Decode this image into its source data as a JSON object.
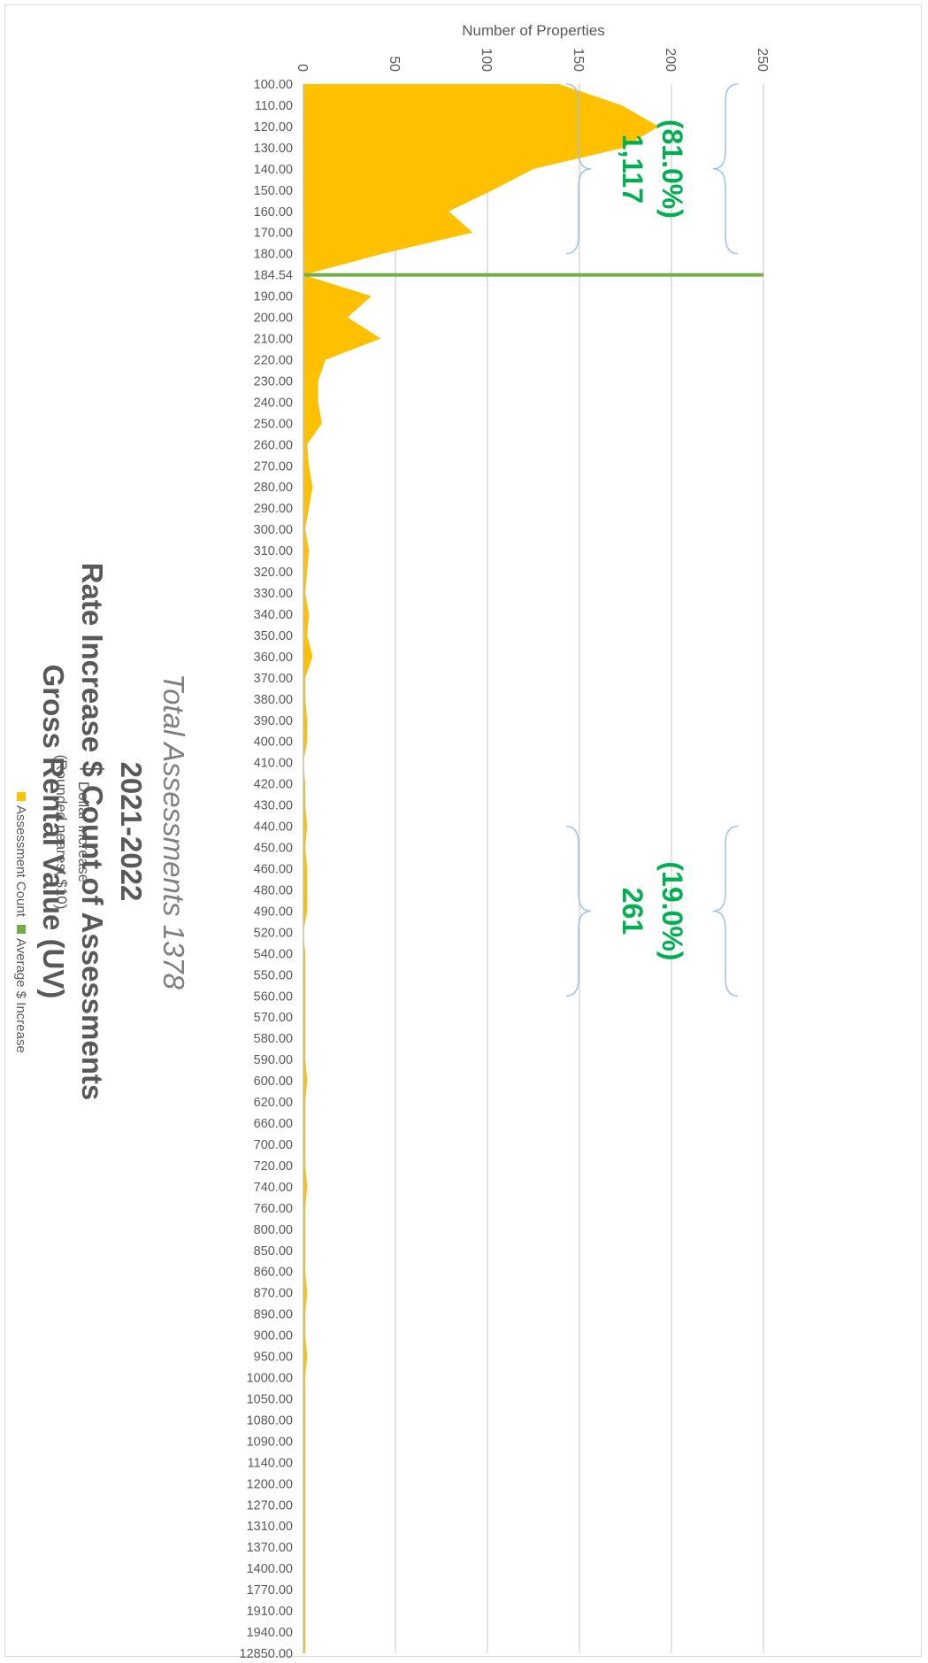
{
  "chart_data": {
    "type": "area",
    "orientation": "rotated-180",
    "title": "Gross Rental Value (UV)",
    "title_line2": "Rate Increase $ Count of Assessments",
    "title_line3": "2021-2022",
    "subtitle": "Total Assessments 1378",
    "xlabel": "Dollar Increase",
    "xlabel_line2": "(Rounded nearest $10)",
    "ylabel": "Number of Properties",
    "ylim": [
      0,
      250
    ],
    "yticks": [
      "0",
      "50",
      "100",
      "150",
      "200",
      "250"
    ],
    "grid": true,
    "legend_position": "bottom",
    "categories": [
      "100.00",
      "110.00",
      "120.00",
      "130.00",
      "140.00",
      "150.00",
      "160.00",
      "170.00",
      "180.00",
      "184.54",
      "190.00",
      "200.00",
      "210.00",
      "220.00",
      "230.00",
      "240.00",
      "250.00",
      "260.00",
      "270.00",
      "280.00",
      "290.00",
      "300.00",
      "310.00",
      "320.00",
      "330.00",
      "340.00",
      "350.00",
      "360.00",
      "370.00",
      "380.00",
      "390.00",
      "400.00",
      "410.00",
      "420.00",
      "430.00",
      "440.00",
      "450.00",
      "460.00",
      "480.00",
      "490.00",
      "520.00",
      "540.00",
      "550.00",
      "560.00",
      "570.00",
      "580.00",
      "590.00",
      "600.00",
      "620.00",
      "660.00",
      "700.00",
      "720.00",
      "740.00",
      "760.00",
      "800.00",
      "850.00",
      "860.00",
      "870.00",
      "890.00",
      "900.00",
      "950.00",
      "1000.00",
      "1050.00",
      "1080.00",
      "1090.00",
      "1140.00",
      "1200.00",
      "1270.00",
      "1310.00",
      "1370.00",
      "1400.00",
      "1770.00",
      "1910.00",
      "1940.00",
      "12850.00"
    ],
    "series": [
      {
        "name": "Assessment Count",
        "color": "#ffc000",
        "values": [
          139,
          173,
          193,
          174,
          125,
          103,
          79,
          92,
          43,
          0,
          37,
          24,
          42,
          12,
          8,
          8,
          10,
          2,
          3,
          5,
          3,
          1,
          3,
          2,
          1,
          3,
          2,
          5,
          1,
          1,
          2,
          2,
          0,
          1,
          1,
          2,
          1,
          2,
          2,
          2,
          0,
          1,
          1,
          1,
          1,
          1,
          1,
          2,
          1,
          1,
          1,
          1,
          2,
          1,
          1,
          1,
          1,
          2,
          1,
          1,
          2,
          1,
          1,
          1,
          1,
          1,
          1,
          1,
          1,
          1,
          1,
          1,
          1,
          1,
          1
        ]
      },
      {
        "name": "Average $ Increase",
        "color": "#70ad47",
        "x": "184.54",
        "value": 250
      }
    ],
    "annotations": [
      {
        "line1": "1,117",
        "line2": "(81.0%)",
        "from": "100.00",
        "to": "180.00"
      },
      {
        "line1": "261",
        "line2": "(19.0%)",
        "from": "440.00",
        "to": "560.00"
      }
    ]
  },
  "colors": {
    "area": "#ffc000",
    "average_line": "#70ad47",
    "annotation_text": "#00b050",
    "brace": "#9dc3e6",
    "grid": "#d9d9d9",
    "text": "#595959"
  }
}
